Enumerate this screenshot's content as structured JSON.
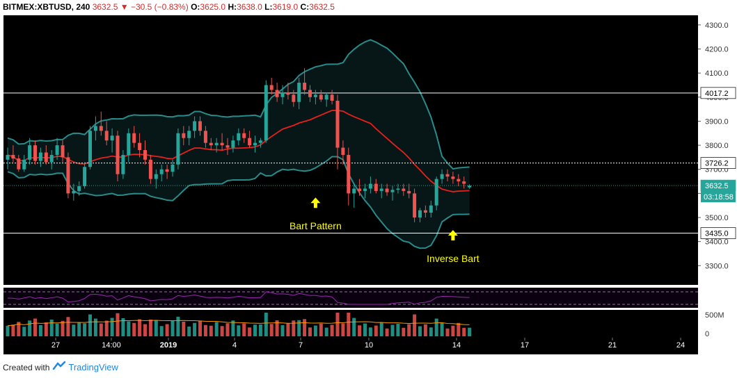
{
  "header": {
    "symbol": "BITMEX:XBTUSD, 240",
    "last": "3632.5",
    "change_arrow": "▼",
    "change": "−30.5 (−0.83%)",
    "o_label": "O:",
    "o_value": "3625.0",
    "h_label": "H:",
    "h_value": "3638.0",
    "l_label": "L:",
    "l_value": "3619.0",
    "c_label": "C:",
    "c_value": "3632.5"
  },
  "footer": {
    "created_with": "Created with",
    "brand": "TradingView",
    "logo_icon": "tradingview-logo-icon"
  },
  "colors": {
    "background": "#000000",
    "up": "#26a69a",
    "down": "#ef5350",
    "bollinger": "#2a8b8b",
    "ma": "#e8201c",
    "annotation": "#ffff00",
    "rsi": "#9c27b0"
  },
  "chart_data": {
    "type": "candlestick",
    "symbol": "BITMEX:XBTUSD",
    "interval": "240",
    "ylim": [
      3220,
      4340
    ],
    "y_ticks": [
      3300,
      3400,
      3500,
      3600,
      3700,
      3800,
      3900,
      4000,
      4100,
      4200,
      4300
    ],
    "x_ticks": [
      "27",
      "14:00",
      "2019",
      "4",
      "7",
      "10",
      "14",
      "17",
      "21",
      "24"
    ],
    "price_labels": [
      "4017.2",
      "3726.2",
      "3632.5",
      "3435.0"
    ],
    "countdown": "03:18:58",
    "horizontal_lines": [
      4017.2,
      3726.2,
      3435.0
    ],
    "annotations": [
      {
        "text": "Bart Pattern",
        "x_index": 56,
        "price": 3560
      },
      {
        "text": "Inverse Bart",
        "x_index": 81,
        "price": 3425
      }
    ],
    "volume_label": "500M",
    "volume_zero_label": "0",
    "candles": [
      [
        3740,
        3790,
        3700,
        3760
      ],
      [
        3760,
        3800,
        3730,
        3745
      ],
      [
        3745,
        3760,
        3690,
        3700
      ],
      [
        3700,
        3760,
        3690,
        3740
      ],
      [
        3740,
        3830,
        3720,
        3800
      ],
      [
        3800,
        3820,
        3720,
        3735
      ],
      [
        3735,
        3790,
        3710,
        3770
      ],
      [
        3770,
        3800,
        3720,
        3730
      ],
      [
        3730,
        3780,
        3700,
        3760
      ],
      [
        3760,
        3830,
        3740,
        3800
      ],
      [
        3800,
        3820,
        3730,
        3750
      ],
      [
        3750,
        3770,
        3580,
        3600
      ],
      [
        3600,
        3640,
        3570,
        3610
      ],
      [
        3610,
        3650,
        3590,
        3630
      ],
      [
        3630,
        3730,
        3620,
        3710
      ],
      [
        3710,
        3880,
        3700,
        3860
      ],
      [
        3860,
        3920,
        3820,
        3880
      ],
      [
        3880,
        3940,
        3840,
        3860
      ],
      [
        3860,
        3900,
        3800,
        3820
      ],
      [
        3820,
        3870,
        3770,
        3840
      ],
      [
        3840,
        3860,
        3650,
        3680
      ],
      [
        3680,
        3780,
        3660,
        3760
      ],
      [
        3760,
        3870,
        3730,
        3850
      ],
      [
        3850,
        3880,
        3790,
        3810
      ],
      [
        3810,
        3850,
        3750,
        3780
      ],
      [
        3780,
        3820,
        3720,
        3740
      ],
      [
        3740,
        3760,
        3640,
        3660
      ],
      [
        3660,
        3700,
        3620,
        3680
      ],
      [
        3680,
        3720,
        3650,
        3700
      ],
      [
        3700,
        3720,
        3660,
        3690
      ],
      [
        3690,
        3740,
        3670,
        3720
      ],
      [
        3720,
        3870,
        3700,
        3850
      ],
      [
        3850,
        3880,
        3800,
        3830
      ],
      [
        3830,
        3880,
        3800,
        3860
      ],
      [
        3860,
        3920,
        3830,
        3900
      ],
      [
        3900,
        3920,
        3840,
        3860
      ],
      [
        3860,
        3880,
        3790,
        3810
      ],
      [
        3810,
        3830,
        3780,
        3800
      ],
      [
        3800,
        3830,
        3770,
        3810
      ],
      [
        3810,
        3850,
        3780,
        3800
      ],
      [
        3800,
        3830,
        3760,
        3790
      ],
      [
        3790,
        3840,
        3770,
        3820
      ],
      [
        3820,
        3870,
        3800,
        3850
      ],
      [
        3850,
        3870,
        3810,
        3830
      ],
      [
        3830,
        3860,
        3790,
        3800
      ],
      [
        3800,
        3840,
        3770,
        3810
      ],
      [
        3810,
        3830,
        3790,
        3820
      ],
      [
        3820,
        4070,
        3810,
        4050
      ],
      [
        4050,
        4080,
        4010,
        4030
      ],
      [
        4030,
        4060,
        3980,
        4000
      ],
      [
        4000,
        4050,
        3970,
        4020
      ],
      [
        4020,
        4060,
        3990,
        4010
      ],
      [
        4010,
        4030,
        3960,
        3980
      ],
      [
        3980,
        4080,
        3950,
        4060
      ],
      [
        4060,
        4120,
        4010,
        4030
      ],
      [
        4030,
        4050,
        3980,
        4000
      ],
      [
        4000,
        4030,
        3970,
        4010
      ],
      [
        4010,
        4030,
        3980,
        3990
      ],
      [
        3990,
        4020,
        3960,
        4010
      ],
      [
        4010,
        4030,
        3970,
        3985
      ],
      [
        3985,
        4010,
        3700,
        3790
      ],
      [
        3790,
        3820,
        3720,
        3760
      ],
      [
        3760,
        3790,
        3550,
        3600
      ],
      [
        3600,
        3640,
        3540,
        3620
      ],
      [
        3620,
        3660,
        3590,
        3610
      ],
      [
        3610,
        3640,
        3580,
        3620
      ],
      [
        3620,
        3670,
        3600,
        3640
      ],
      [
        3640,
        3660,
        3600,
        3610
      ],
      [
        3610,
        3640,
        3580,
        3620
      ],
      [
        3620,
        3640,
        3590,
        3605
      ],
      [
        3605,
        3630,
        3570,
        3615
      ],
      [
        3615,
        3640,
        3600,
        3620
      ],
      [
        3620,
        3640,
        3590,
        3610
      ],
      [
        3610,
        3640,
        3580,
        3600
      ],
      [
        3600,
        3620,
        3480,
        3500
      ],
      [
        3500,
        3540,
        3480,
        3530
      ],
      [
        3530,
        3550,
        3500,
        3520
      ],
      [
        3520,
        3570,
        3500,
        3550
      ],
      [
        3550,
        3670,
        3530,
        3660
      ],
      [
        3660,
        3700,
        3640,
        3680
      ],
      [
        3680,
        3700,
        3650,
        3670
      ],
      [
        3670,
        3690,
        3640,
        3660
      ],
      [
        3660,
        3680,
        3630,
        3650
      ],
      [
        3650,
        3670,
        3620,
        3640
      ],
      [
        3625,
        3638,
        3619,
        3632.5
      ]
    ]
  }
}
